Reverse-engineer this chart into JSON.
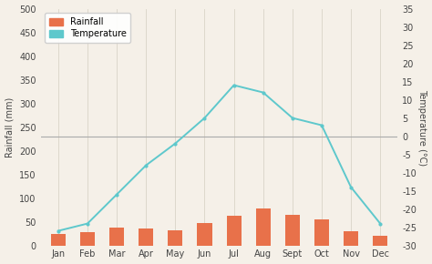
{
  "months": [
    "Jan",
    "Feb",
    "Mar",
    "Apr",
    "May",
    "Jun",
    "Jul",
    "Aug",
    "Sept",
    "Oct",
    "Nov",
    "Dec"
  ],
  "rainfall": [
    25,
    28,
    37,
    35,
    32,
    47,
    62,
    78,
    65,
    55,
    30,
    20
  ],
  "temperature": [
    -26,
    -24,
    -16,
    -8,
    -2,
    5,
    14,
    12,
    5,
    3,
    -14,
    -24
  ],
  "bar_color": "#e8714a",
  "line_color": "#5ec8cc",
  "line_marker": "o",
  "bg_color": "#f5f0e8",
  "grid_color": "#ddd8cc",
  "hline_color": "#aaaaaa",
  "ylabel_left": "Rainfall (mm)",
  "ylabel_right": "Temperature (°C)",
  "ylim_left": [
    0,
    500
  ],
  "ylim_right": [
    -30,
    35
  ],
  "yticks_left": [
    0,
    50,
    100,
    150,
    200,
    250,
    300,
    350,
    400,
    450,
    500
  ],
  "yticks_right": [
    -30,
    -25,
    -20,
    -15,
    -10,
    -5,
    0,
    5,
    10,
    15,
    20,
    25,
    30,
    35
  ],
  "legend_rainfall": "Rainfall",
  "legend_temperature": "Temperature",
  "hline_temp": 0,
  "axis_fontsize": 7,
  "tick_fontsize": 7,
  "ylabel_fontsize": 7
}
